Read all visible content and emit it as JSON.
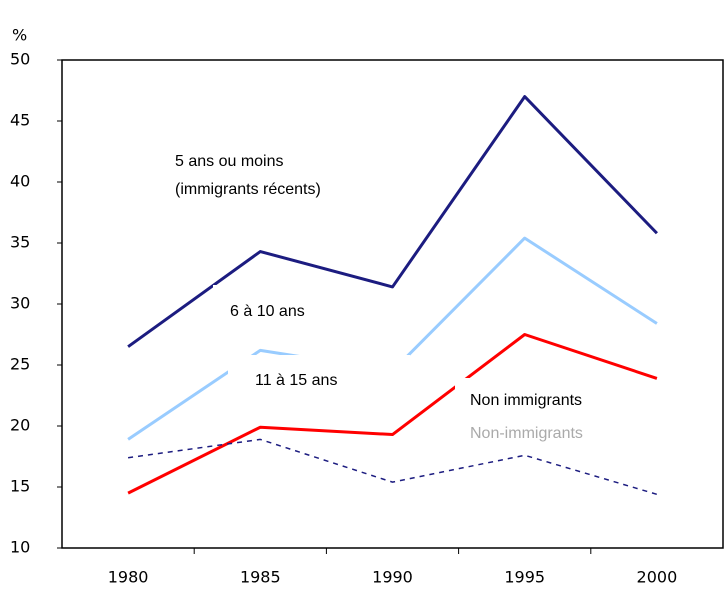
{
  "chart_data": {
    "type": "line",
    "y_label": "%",
    "categories": [
      "1980",
      "1985",
      "1990",
      "1995",
      "2000"
    ],
    "series": [
      {
        "name": "5 ans ou moins (immigrants récents)",
        "color": "#1c1c80",
        "values": [
          26.5,
          34.3,
          31.4,
          47.0,
          35.8
        ]
      },
      {
        "name": "6 à 10 ans",
        "color": "#99ccff",
        "values": [
          18.9,
          26.2,
          24.5,
          35.4,
          28.4
        ]
      },
      {
        "name": "11 à 15 ans",
        "color": "#ff0000",
        "values": [
          14.5,
          19.9,
          19.3,
          27.5,
          23.9
        ]
      },
      {
        "name": "Non immigrants",
        "color": "#1c1c80",
        "dashed": true,
        "values": [
          17.4,
          18.9,
          15.4,
          17.6,
          14.4
        ]
      }
    ],
    "annotations": [
      "5 ans ou moins",
      "(immigrants récents)",
      "6 à 10 ans",
      "11 à 15 ans",
      "Non immigrants",
      "Non-immigrants"
    ],
    "ylim": [
      10,
      50
    ],
    "yticks": [
      10,
      15,
      20,
      25,
      30,
      35,
      40,
      45,
      50
    ]
  }
}
